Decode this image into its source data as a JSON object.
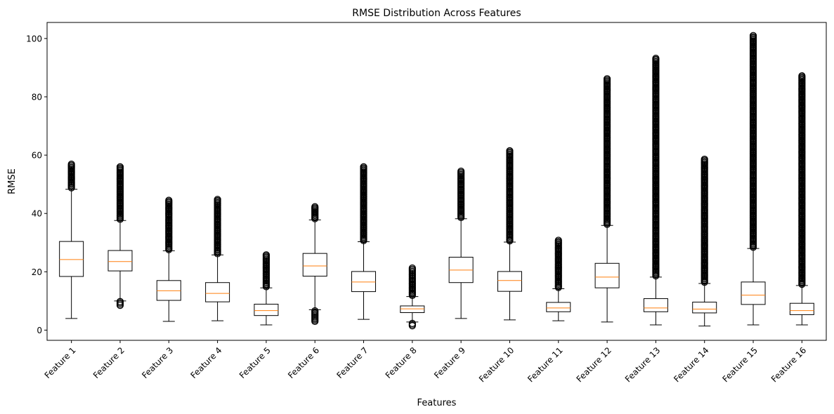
{
  "chart_data": {
    "type": "boxplot",
    "title": "RMSE Distribution Across Features",
    "xlabel": "Features",
    "ylabel": "RMSE",
    "ylim": [
      -3.5,
      105.5
    ],
    "yticks": [
      0,
      20,
      40,
      60,
      80,
      100
    ],
    "grid": false,
    "legend": "none",
    "box_edge_color": "#000000",
    "median_color": "#ff7f0e",
    "categories": [
      "Feature 1",
      "Feature 2",
      "Feature 3",
      "Feature 4",
      "Feature 5",
      "Feature 6",
      "Feature 7",
      "Feature 8",
      "Feature 9",
      "Feature 10",
      "Feature 11",
      "Feature 12",
      "Feature 13",
      "Feature 14",
      "Feature 15",
      "Feature 16"
    ],
    "boxes": [
      {
        "whislo": 4.0,
        "q1": 18.4,
        "med": 24.2,
        "q3": 30.4,
        "whishi": 48.3,
        "fliers_low": [],
        "fliers_high": [
          48.8,
          56.9
        ]
      },
      {
        "whislo": 10.0,
        "q1": 20.3,
        "med": 23.5,
        "q3": 27.3,
        "whishi": 37.6,
        "fliers_low": [
          8.5,
          9.8
        ],
        "fliers_high": [
          38.0,
          56.0
        ]
      },
      {
        "whislo": 3.0,
        "q1": 10.2,
        "med": 13.5,
        "q3": 17.0,
        "whishi": 27.2,
        "fliers_low": [],
        "fliers_high": [
          27.6,
          44.5
        ]
      },
      {
        "whislo": 3.2,
        "q1": 9.7,
        "med": 12.6,
        "q3": 16.3,
        "whishi": 25.8,
        "fliers_low": [],
        "fliers_high": [
          26.2,
          44.8
        ]
      },
      {
        "whislo": 1.8,
        "q1": 5.0,
        "med": 6.7,
        "q3": 8.9,
        "whishi": 14.5,
        "fliers_low": [],
        "fliers_high": [
          14.9,
          25.8
        ]
      },
      {
        "whislo": 7.0,
        "q1": 18.5,
        "med": 22.0,
        "q3": 26.3,
        "whishi": 37.8,
        "fliers_low": [
          3.0,
          6.6
        ],
        "fliers_high": [
          38.2,
          42.3
        ]
      },
      {
        "whislo": 3.7,
        "q1": 13.2,
        "med": 16.5,
        "q3": 20.1,
        "whishi": 30.3,
        "fliers_low": [],
        "fliers_high": [
          30.7,
          56.0
        ]
      },
      {
        "whislo": 2.8,
        "q1": 6.0,
        "med": 7.3,
        "q3": 8.3,
        "whishi": 11.5,
        "fliers_low": [
          1.5,
          2.3
        ],
        "fliers_high": [
          11.9,
          21.3
        ]
      },
      {
        "whislo": 4.0,
        "q1": 16.3,
        "med": 20.6,
        "q3": 25.0,
        "whishi": 38.2,
        "fliers_low": [],
        "fliers_high": [
          38.6,
          54.5
        ]
      },
      {
        "whislo": 3.5,
        "q1": 13.3,
        "med": 17.0,
        "q3": 20.1,
        "whishi": 30.2,
        "fliers_low": [],
        "fliers_high": [
          30.6,
          61.5
        ]
      },
      {
        "whislo": 3.2,
        "q1": 6.3,
        "med": 7.6,
        "q3": 9.5,
        "whishi": 14.2,
        "fliers_low": [],
        "fliers_high": [
          14.6,
          30.8
        ]
      },
      {
        "whislo": 2.8,
        "q1": 14.5,
        "med": 18.2,
        "q3": 22.9,
        "whishi": 35.9,
        "fliers_low": [],
        "fliers_high": [
          36.3,
          86.2
        ]
      },
      {
        "whislo": 1.8,
        "q1": 6.3,
        "med": 7.6,
        "q3": 10.8,
        "whishi": 18.2,
        "fliers_low": [],
        "fliers_high": [
          18.6,
          93.2
        ]
      },
      {
        "whislo": 1.4,
        "q1": 5.9,
        "med": 7.2,
        "q3": 9.6,
        "whishi": 16.0,
        "fliers_low": [],
        "fliers_high": [
          16.4,
          58.6
        ]
      },
      {
        "whislo": 1.8,
        "q1": 8.8,
        "med": 12.0,
        "q3": 16.5,
        "whishi": 28.0,
        "fliers_low": [],
        "fliers_high": [
          28.4,
          101.0
        ]
      },
      {
        "whislo": 1.8,
        "q1": 5.3,
        "med": 6.7,
        "q3": 9.2,
        "whishi": 15.3,
        "fliers_low": [],
        "fliers_high": [
          15.7,
          87.2
        ]
      }
    ]
  }
}
